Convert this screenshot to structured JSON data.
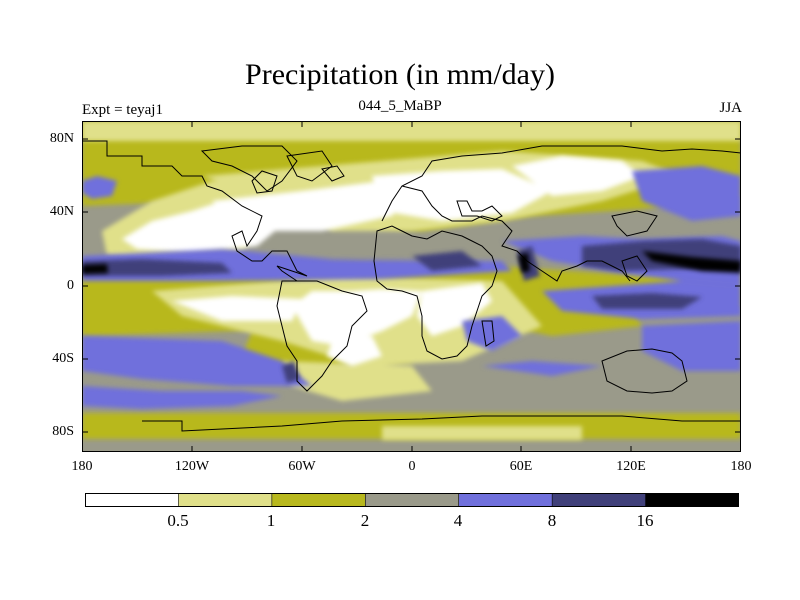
{
  "title": "Precipitation (in mm/day)",
  "left_label": "Expt = teyaj1",
  "center_label": "044_5_MaBP",
  "right_label": "JJA",
  "lat_ticks": [
    "80N",
    "40N",
    "0",
    "40S",
    "80S"
  ],
  "lon_ticks": [
    "180",
    "120W",
    "60W",
    "0",
    "60E",
    "120E",
    "180"
  ],
  "legend": {
    "levels": [
      "0.5",
      "1",
      "2",
      "4",
      "8",
      "16"
    ],
    "colors": [
      "#ffffff",
      "#e0e08a",
      "#b8b81e",
      "#9a9a8a",
      "#7070dc",
      "#40407a",
      "#000000"
    ]
  }
}
